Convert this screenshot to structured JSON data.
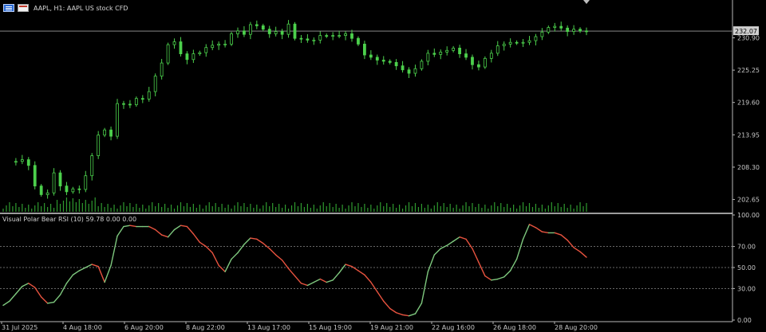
{
  "header": {
    "symbol": "AAPL, H1:  AAPL US stock CFD",
    "menu_icon": "chart-menu-icon",
    "calendar_icon": "calendar-icon"
  },
  "indicator": {
    "label": "Visual Polar Bear RSI (10) 59.78 0.00 0.00"
  },
  "colors": {
    "background": "#000000",
    "bull": "#4cd04c",
    "rsi_up": "#7ec87e",
    "rsi_down": "#e8533f",
    "axis_text": "#c8c8c8",
    "bid_box": "#cfcfcf"
  },
  "chart_data": [
    {
      "type": "candlestick",
      "title": "AAPL, H1:  AAPL US stock CFD",
      "ylim": [
        200.5,
        235.0
      ],
      "y_ticks": [
        "230.90",
        "225.25",
        "219.60",
        "213.95",
        "208.30",
        "202.65"
      ],
      "y_tick_values": [
        230.9,
        225.25,
        219.6,
        213.95,
        208.3,
        202.65
      ],
      "current_price": "232.07",
      "current_price_value": 232.07,
      "x_ticks": [
        "31 Jul 2025",
        "4 Aug 18:00",
        "6 Aug 20:00",
        "8 Aug 22:00",
        "13 Aug 17:00",
        "15 Aug 19:00",
        "19 Aug 21:00",
        "22 Aug 16:00",
        "26 Aug 18:00",
        "28 Aug 20:00"
      ],
      "close_path": [
        [
          0,
          209.3
        ],
        [
          4,
          209.3
        ],
        [
          6,
          209.6
        ],
        [
          8,
          208.6
        ],
        [
          10,
          205.0
        ],
        [
          12,
          203.5
        ],
        [
          14,
          203.8
        ],
        [
          16,
          207.3
        ],
        [
          18,
          205.0
        ],
        [
          20,
          204.0
        ],
        [
          22,
          204.5
        ],
        [
          24,
          204.4
        ],
        [
          26,
          206.8
        ],
        [
          28,
          210.3
        ],
        [
          30,
          213.9
        ],
        [
          32,
          214.8
        ],
        [
          34,
          213.7
        ],
        [
          36,
          219.4
        ],
        [
          38,
          219.3
        ],
        [
          40,
          219.2
        ],
        [
          42,
          220.3
        ],
        [
          44,
          220.2
        ],
        [
          46,
          221.5
        ],
        [
          48,
          224.2
        ],
        [
          50,
          226.5
        ],
        [
          52,
          229.7
        ],
        [
          54,
          230.2
        ],
        [
          56,
          228.1
        ],
        [
          58,
          227.1
        ],
        [
          60,
          228.1
        ],
        [
          62,
          228.3
        ],
        [
          64,
          229.2
        ],
        [
          66,
          229.6
        ],
        [
          68,
          229.8
        ],
        [
          70,
          229.8
        ],
        [
          72,
          231.6
        ],
        [
          74,
          232.1
        ],
        [
          76,
          231.5
        ],
        [
          78,
          233.2
        ],
        [
          80,
          233.0
        ],
        [
          82,
          232.4
        ],
        [
          84,
          231.6
        ],
        [
          86,
          232.0
        ],
        [
          88,
          231.5
        ],
        [
          90,
          233.3
        ],
        [
          92,
          230.8
        ],
        [
          94,
          230.7
        ],
        [
          96,
          230.5
        ],
        [
          98,
          230.5
        ],
        [
          100,
          231.3
        ],
        [
          102,
          231.2
        ],
        [
          104,
          231.3
        ],
        [
          106,
          231.3
        ],
        [
          108,
          231.6
        ],
        [
          110,
          230.8
        ],
        [
          112,
          229.8
        ],
        [
          114,
          227.9
        ],
        [
          116,
          227.5
        ],
        [
          118,
          227.0
        ],
        [
          120,
          226.8
        ],
        [
          122,
          226.6
        ],
        [
          124,
          226.0
        ],
        [
          126,
          225.3
        ],
        [
          128,
          224.7
        ],
        [
          130,
          225.5
        ],
        [
          132,
          226.8
        ],
        [
          134,
          228.2
        ],
        [
          136,
          228.0
        ],
        [
          138,
          228.4
        ],
        [
          140,
          228.7
        ],
        [
          142,
          229.1
        ],
        [
          144,
          228.1
        ],
        [
          146,
          227.5
        ],
        [
          148,
          226.2
        ],
        [
          150,
          225.8
        ],
        [
          152,
          227.3
        ],
        [
          154,
          228.2
        ],
        [
          156,
          229.5
        ],
        [
          158,
          229.8
        ],
        [
          160,
          230.1
        ],
        [
          162,
          230.0
        ],
        [
          164,
          230.1
        ],
        [
          166,
          230.4
        ],
        [
          168,
          231.1
        ],
        [
          170,
          231.9
        ],
        [
          172,
          232.7
        ],
        [
          174,
          232.9
        ],
        [
          176,
          232.6
        ],
        [
          178,
          232.0
        ],
        [
          180,
          232.4
        ],
        [
          182,
          232.1
        ],
        [
          184,
          232.07
        ]
      ]
    },
    {
      "type": "line",
      "title": "Visual Polar Bear RSI (10) 59.78 0.00 0.00",
      "ylim": [
        0,
        100
      ],
      "y_ticks": [
        "100.00",
        "70.00",
        "50.00",
        "30.00",
        "0.00"
      ],
      "y_tick_values": [
        100,
        70,
        50,
        30,
        0
      ],
      "levels": [
        70,
        50,
        30
      ],
      "rsi_path": [
        [
          0,
          14
        ],
        [
          2,
          18
        ],
        [
          4,
          25
        ],
        [
          6,
          32
        ],
        [
          8,
          35
        ],
        [
          10,
          31
        ],
        [
          12,
          22
        ],
        [
          14,
          16
        ],
        [
          16,
          17
        ],
        [
          18,
          24
        ],
        [
          20,
          35
        ],
        [
          22,
          43
        ],
        [
          24,
          47
        ],
        [
          26,
          50
        ],
        [
          28,
          53
        ],
        [
          30,
          51
        ],
        [
          32,
          36
        ],
        [
          34,
          52
        ],
        [
          36,
          80
        ],
        [
          38,
          89
        ],
        [
          40,
          90
        ],
        [
          42,
          89
        ],
        [
          44,
          89
        ],
        [
          46,
          89
        ],
        [
          48,
          86
        ],
        [
          50,
          81
        ],
        [
          52,
          79
        ],
        [
          54,
          86
        ],
        [
          56,
          90
        ],
        [
          58,
          89
        ],
        [
          60,
          82
        ],
        [
          62,
          74
        ],
        [
          64,
          70
        ],
        [
          66,
          64
        ],
        [
          68,
          52
        ],
        [
          70,
          46
        ],
        [
          72,
          58
        ],
        [
          74,
          64
        ],
        [
          76,
          72
        ],
        [
          78,
          78
        ],
        [
          80,
          77
        ],
        [
          82,
          73
        ],
        [
          84,
          68
        ],
        [
          86,
          62
        ],
        [
          88,
          57
        ],
        [
          90,
          49
        ],
        [
          92,
          42
        ],
        [
          94,
          35
        ],
        [
          96,
          33
        ],
        [
          98,
          36
        ],
        [
          100,
          39
        ],
        [
          102,
          36
        ],
        [
          104,
          38
        ],
        [
          106,
          45
        ],
        [
          108,
          53
        ],
        [
          110,
          51
        ],
        [
          112,
          47
        ],
        [
          114,
          43
        ],
        [
          116,
          36
        ],
        [
          118,
          27
        ],
        [
          120,
          18
        ],
        [
          122,
          11
        ],
        [
          124,
          7
        ],
        [
          126,
          5
        ],
        [
          128,
          4
        ],
        [
          130,
          6
        ],
        [
          132,
          16
        ],
        [
          134,
          46
        ],
        [
          136,
          62
        ],
        [
          138,
          68
        ],
        [
          140,
          71
        ],
        [
          142,
          75
        ],
        [
          144,
          79
        ],
        [
          146,
          77
        ],
        [
          148,
          68
        ],
        [
          150,
          55
        ],
        [
          152,
          42
        ],
        [
          154,
          38
        ],
        [
          156,
          39
        ],
        [
          158,
          41
        ],
        [
          160,
          47
        ],
        [
          162,
          58
        ],
        [
          164,
          77
        ],
        [
          166,
          91
        ],
        [
          168,
          88
        ],
        [
          170,
          84
        ],
        [
          172,
          83
        ],
        [
          174,
          83
        ],
        [
          176,
          81
        ],
        [
          178,
          76
        ],
        [
          180,
          69
        ],
        [
          182,
          65
        ],
        [
          184,
          59.78
        ]
      ]
    }
  ]
}
